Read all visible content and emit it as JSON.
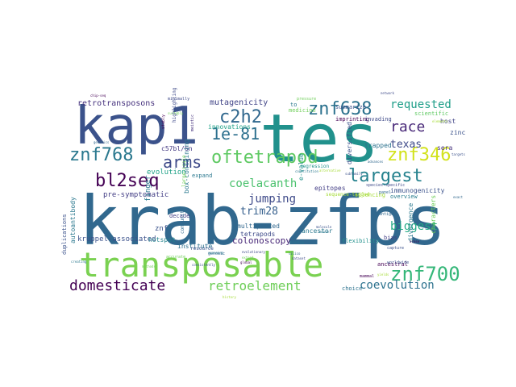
{
  "cloud": {
    "words": [
      {
        "text": "krab-zfps",
        "color": "#31688e"
      },
      {
        "text": "tes",
        "color": "#21918c"
      },
      {
        "text": "kap1",
        "color": "#3b528b"
      },
      {
        "text": "transposable",
        "color": "#7ad151"
      },
      {
        "text": "znf638",
        "color": "#2c728e"
      },
      {
        "text": "znf768",
        "color": "#2a788e"
      },
      {
        "text": "znf346",
        "color": "#d2e21b"
      },
      {
        "text": "oftetrapod",
        "color": "#5ec962"
      },
      {
        "text": "largest",
        "color": "#26828e"
      },
      {
        "text": "bl2seq",
        "color": "#440154"
      },
      {
        "text": "c2h2",
        "color": "#31688e"
      },
      {
        "text": "arms",
        "color": "#3e4a89"
      },
      {
        "text": "1e-81",
        "color": "#2d708e"
      },
      {
        "text": "race",
        "color": "#482878"
      },
      {
        "text": "requested",
        "color": "#1f9e89"
      },
      {
        "text": "znf700",
        "color": "#35b779"
      },
      {
        "text": "domesticate",
        "color": "#440154"
      },
      {
        "text": "retroelement",
        "color": "#6ece58"
      },
      {
        "text": "coevolution",
        "color": "#2c728e"
      },
      {
        "text": "coelacanth",
        "color": "#4ac16d"
      },
      {
        "text": "jumping",
        "color": "#3e4a89"
      },
      {
        "text": "biggest",
        "color": "#22a884"
      },
      {
        "text": "trim28",
        "color": "#355f8d"
      },
      {
        "text": "texas",
        "color": "#3e4a89"
      },
      {
        "text": "colonoscopy",
        "color": "#482878"
      },
      {
        "text": "mutagenicity",
        "color": "#414487"
      },
      {
        "text": "retrotransposons",
        "color": "#46327e"
      },
      {
        "text": "innovations",
        "color": "#1fa187"
      },
      {
        "text": "c57bl/6n",
        "color": "#443983"
      },
      {
        "text": "evolution",
        "color": "#1fa187"
      },
      {
        "text": "pre-symptomatic",
        "color": "#433e85"
      },
      {
        "text": "kruppel-associated",
        "color": "#3b528b"
      },
      {
        "text": "institute",
        "color": "#2d708e"
      },
      {
        "text": "multiplexed",
        "color": "#31688e"
      },
      {
        "text": "tetrapods",
        "color": "#3e4a89"
      },
      {
        "text": "ancestor",
        "color": "#2a788e"
      },
      {
        "text": "epitopes",
        "color": "#433e85"
      },
      {
        "text": "immunogenicity",
        "color": "#3b528b"
      },
      {
        "text": "scientific",
        "color": "#5ec962"
      },
      {
        "text": "host",
        "color": "#414487"
      },
      {
        "text": "sera",
        "color": "#46327e"
      },
      {
        "text": "zinc",
        "color": "#3b528b"
      },
      {
        "text": "trapped",
        "color": "#2c728e"
      },
      {
        "text": "overview",
        "color": "#287c8e"
      },
      {
        "text": "silencing",
        "color": "#a5db36"
      },
      {
        "text": "diversified",
        "color": "#3b528b"
      },
      {
        "text": "e-value",
        "color": "#20928c"
      },
      {
        "text": "autoantibody",
        "color": "#2a788e"
      },
      {
        "text": "finger",
        "color": "#2a788e"
      },
      {
        "text": "hotspot",
        "color": "#25848e"
      },
      {
        "text": "znf",
        "color": "#3b528b"
      },
      {
        "text": "decade",
        "color": "#433e85"
      },
      {
        "text": "expand",
        "color": "#2a788e"
      },
      {
        "text": "flexibility",
        "color": "#21918c"
      },
      {
        "text": "characters",
        "color": "#6ece58"
      },
      {
        "text": "divergence",
        "color": "#2a788e"
      },
      {
        "text": "bias",
        "color": "#433e85"
      },
      {
        "text": "ancestral",
        "color": "#440154"
      },
      {
        "text": "choice",
        "color": "#2c728e"
      },
      {
        "text": "duplications",
        "color": "#3b528b"
      },
      {
        "text": "medicine",
        "color": "#6ece58"
      },
      {
        "text": "summarize",
        "color": "#3b528b"
      },
      {
        "text": "imprinting",
        "color": "#440154"
      },
      {
        "text": "invading",
        "color": "#3e4a89"
      },
      {
        "text": "highlighting",
        "color": "#3e4a89"
      },
      {
        "text": "meiotic",
        "color": "#46327e"
      },
      {
        "text": "regression",
        "color": "#21918c"
      },
      {
        "text": "box-containing",
        "color": "#2a788e"
      },
      {
        "text": "community",
        "color": "#31688e"
      },
      {
        "text": "resource",
        "color": "#3b528b"
      },
      {
        "text": "genomic",
        "color": "#31688e"
      },
      {
        "text": "sequence-tagged",
        "color": "#a5db36"
      },
      {
        "text": "large-scale",
        "color": "#6ece58"
      },
      {
        "text": "minimally",
        "color": "#3e4a89"
      },
      {
        "text": "stably",
        "color": "#440154"
      },
      {
        "text": "to",
        "color": "#2a788e"
      },
      {
        "text": "pressure",
        "color": "#6ece58"
      },
      {
        "text": "capture",
        "color": "#3b528b"
      },
      {
        "text": "panel",
        "color": "#31688e"
      },
      {
        "text": "accurate",
        "color": "#6ece58"
      },
      {
        "text": "mammal",
        "color": "#440154"
      },
      {
        "text": "worldwide",
        "color": "#3b528b"
      },
      {
        "text": "species-specific",
        "color": "#3e4a89"
      },
      {
        "text": "antigen",
        "color": "#31688e"
      },
      {
        "text": "constitution",
        "color": "#2a788e"
      },
      {
        "text": "genetics",
        "color": "#31688e"
      },
      {
        "text": "evolutionary",
        "color": "#3e4a89"
      },
      {
        "text": "alternative",
        "color": "#a5db36"
      },
      {
        "text": "consistently",
        "color": "#3b528b"
      },
      {
        "text": "suitably",
        "color": "#6ece58"
      },
      {
        "text": "chip-seq",
        "color": "#440154"
      },
      {
        "text": "creating",
        "color": "#2a788e"
      },
      {
        "text": "advances",
        "color": "#31688e"
      },
      {
        "text": "subfamily",
        "color": "#3b528b"
      },
      {
        "text": "history",
        "color": "#a5db36"
      },
      {
        "text": "binding",
        "color": "#2a788e"
      },
      {
        "text": "global",
        "color": "#440154"
      },
      {
        "text": "dataset",
        "color": "#3e4a89"
      },
      {
        "text": "silico",
        "color": "#31688e"
      },
      {
        "text": "extend",
        "color": "#6ece58"
      },
      {
        "text": "molecule",
        "color": "#3b528b"
      },
      {
        "text": "mouse",
        "color": "#2a788e"
      },
      {
        "text": "elements",
        "color": "#a5db36"
      },
      {
        "text": "arose",
        "color": "#440154"
      },
      {
        "text": "network",
        "color": "#3e4a89"
      },
      {
        "text": "exact",
        "color": "#31688e"
      },
      {
        "text": "methods",
        "color": "#6ece58"
      },
      {
        "text": "scanning",
        "color": "#2a788e"
      },
      {
        "text": "targets",
        "color": "#3b528b"
      },
      {
        "text": "yields",
        "color": "#a5db36"
      }
    ]
  }
}
